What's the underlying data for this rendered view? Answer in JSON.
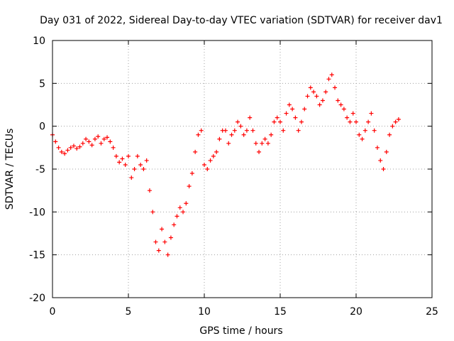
{
  "chart_data": {
    "type": "scatter",
    "title": "Day 031 of 2022, Sidereal Day-to-day VTEC variation (SDTVAR) for receiver dav1",
    "xlabel": "GPS time / hours",
    "ylabel": "SDTVAR / TECUs",
    "xlim": [
      0,
      25
    ],
    "ylim": [
      -20,
      10
    ],
    "x_ticks": [
      0,
      5,
      10,
      15,
      20,
      25
    ],
    "y_ticks": [
      -20,
      -15,
      -10,
      -5,
      0,
      5,
      10
    ],
    "grid": true,
    "marker": "+",
    "series": [
      {
        "name": "dav1",
        "color": "#ff0000",
        "x": [
          0.0,
          0.2,
          0.4,
          0.6,
          0.8,
          1.0,
          1.2,
          1.4,
          1.6,
          1.8,
          2.0,
          2.2,
          2.4,
          2.6,
          2.8,
          3.0,
          3.2,
          3.4,
          3.6,
          3.8,
          4.0,
          4.2,
          4.4,
          4.6,
          4.8,
          5.0,
          5.2,
          5.4,
          5.6,
          5.8,
          6.0,
          6.2,
          6.4,
          6.6,
          6.8,
          7.0,
          7.2,
          7.4,
          7.6,
          7.8,
          8.0,
          8.2,
          8.4,
          8.6,
          8.8,
          9.0,
          9.2,
          9.4,
          9.6,
          9.8,
          10.0,
          10.2,
          10.4,
          10.6,
          10.8,
          11.0,
          11.2,
          11.4,
          11.6,
          11.8,
          12.0,
          12.2,
          12.4,
          12.6,
          12.8,
          13.0,
          13.2,
          13.4,
          13.6,
          13.8,
          14.0,
          14.2,
          14.4,
          14.6,
          14.8,
          15.0,
          15.2,
          15.4,
          15.6,
          15.8,
          16.0,
          16.2,
          16.4,
          16.6,
          16.8,
          17.0,
          17.2,
          17.4,
          17.6,
          17.8,
          18.0,
          18.2,
          18.4,
          18.6,
          18.8,
          19.0,
          19.2,
          19.4,
          19.6,
          19.8,
          20.0,
          20.2,
          20.4,
          20.6,
          20.8,
          21.0,
          21.2,
          21.4,
          21.6,
          21.8,
          22.0,
          22.2,
          22.4,
          22.6,
          22.8
        ],
        "y": [
          -1.0,
          -1.8,
          -2.5,
          -3.0,
          -3.2,
          -2.8,
          -2.5,
          -2.3,
          -2.6,
          -2.4,
          -2.0,
          -1.5,
          -1.8,
          -2.2,
          -1.5,
          -1.2,
          -2.0,
          -1.5,
          -1.3,
          -1.8,
          -2.5,
          -3.5,
          -4.2,
          -3.8,
          -4.5,
          -3.5,
          -6.0,
          -5.0,
          -3.5,
          -4.5,
          -5.0,
          -4.0,
          -7.5,
          -10.0,
          -13.5,
          -14.5,
          -12.0,
          -13.5,
          -15.0,
          -13.0,
          -11.5,
          -10.5,
          -9.5,
          -10.0,
          -9.0,
          -7.0,
          -5.5,
          -3.0,
          -1.0,
          -0.5,
          -4.5,
          -5.0,
          -4.0,
          -3.5,
          -3.0,
          -1.5,
          -0.5,
          -0.5,
          -2.0,
          -1.0,
          -0.5,
          0.5,
          0.0,
          -1.0,
          -0.5,
          1.0,
          -0.5,
          -2.0,
          -3.0,
          -2.0,
          -1.5,
          -2.0,
          -1.0,
          0.5,
          1.0,
          0.5,
          -0.5,
          1.5,
          2.5,
          2.0,
          1.0,
          -0.5,
          0.5,
          2.0,
          3.5,
          4.5,
          4.0,
          3.5,
          2.5,
          3.0,
          4.0,
          5.5,
          6.0,
          4.5,
          3.0,
          2.5,
          2.0,
          1.0,
          0.5,
          1.5,
          0.5,
          -1.0,
          -1.5,
          -0.5,
          0.5,
          1.5,
          -0.5,
          -2.5,
          -4.0,
          -5.0,
          -3.0,
          -1.0,
          0.0,
          0.5,
          0.8
        ]
      }
    ]
  }
}
